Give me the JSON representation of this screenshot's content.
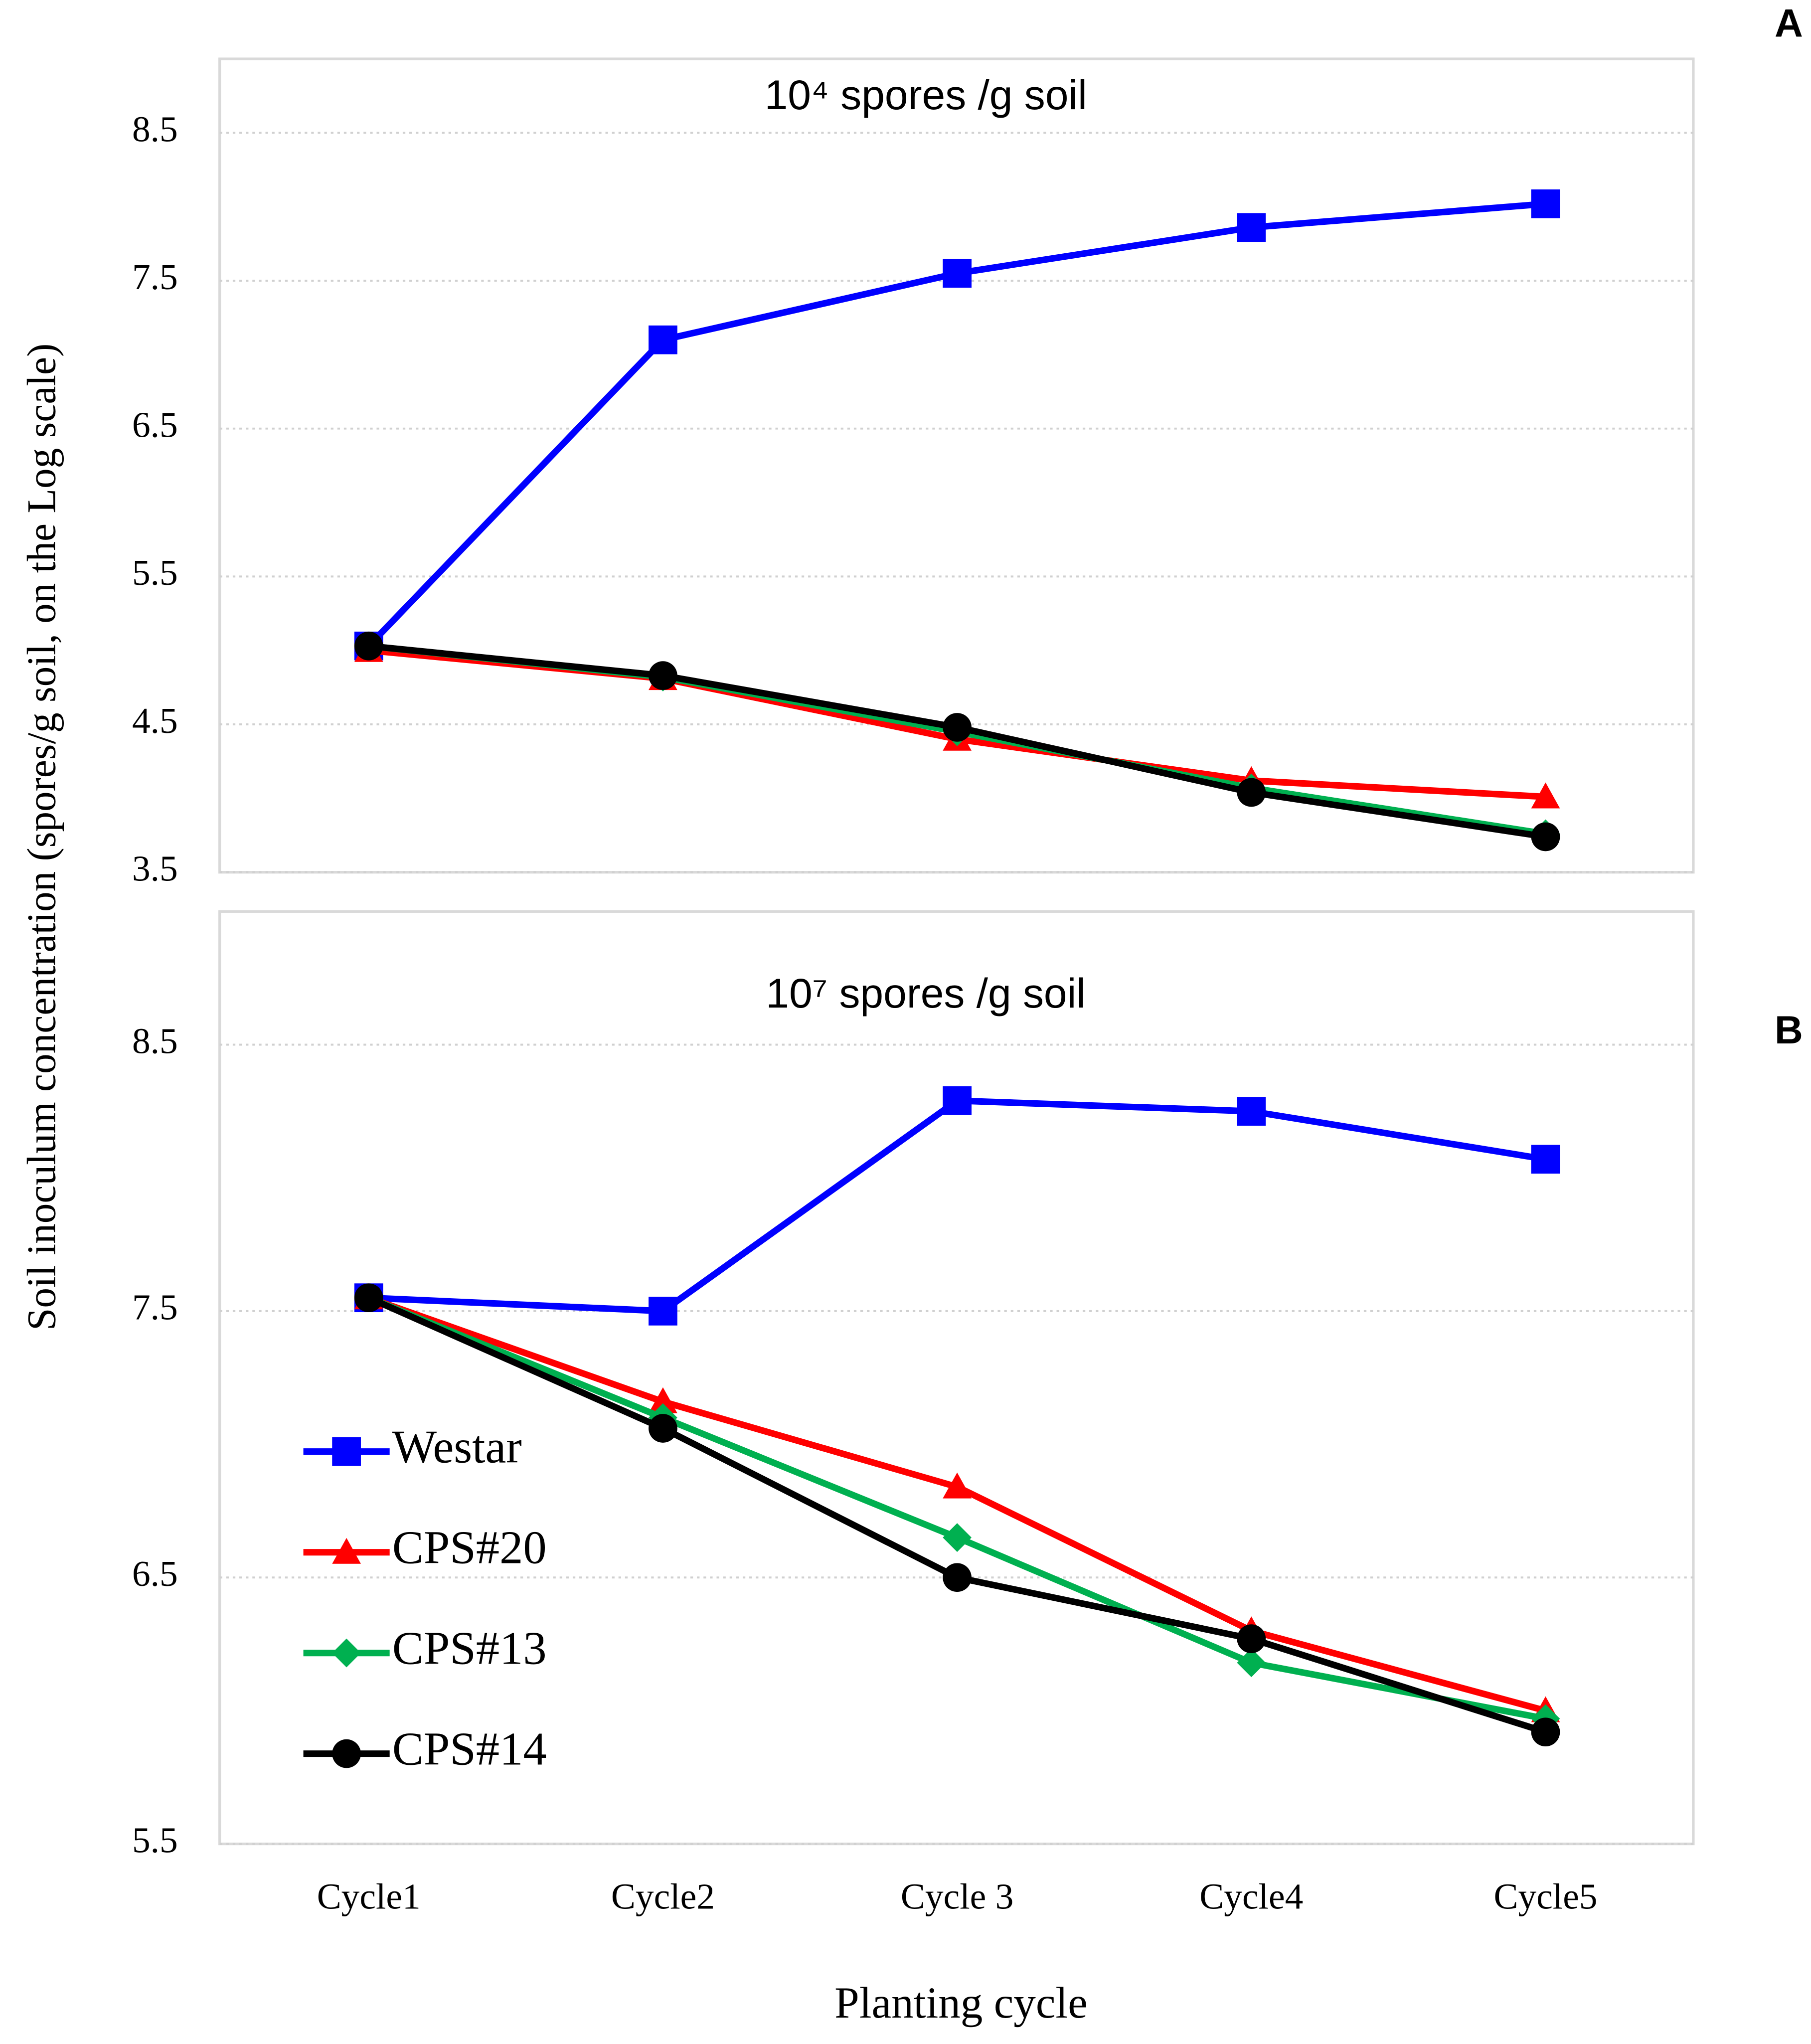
{
  "chart_data": [
    {
      "type": "line",
      "title": "10⁴ spores /g soil",
      "panel_label": "A",
      "y_label": "Soil inoculum concentration (spores/g soil, on the Log scale)",
      "categories": [
        null,
        null,
        null,
        null,
        null
      ],
      "ylim": [
        3.5,
        9.0
      ],
      "yticks": [
        3.5,
        4.5,
        5.5,
        6.5,
        7.5,
        8.5
      ],
      "grid": true,
      "series": [
        {
          "color": "#0000ff",
          "marker": "square",
          "values": [
            5.03,
            7.1,
            7.55,
            7.86,
            8.02
          ]
        },
        {
          "color": "#ff0000",
          "marker": "triangle",
          "values": [
            5.0,
            4.81,
            4.4,
            4.12,
            4.01
          ]
        },
        {
          "color": "#00b050",
          "marker": "diamond",
          "values": [
            5.03,
            4.82,
            4.45,
            4.07,
            3.76
          ]
        },
        {
          "color": "#000000",
          "marker": "circle",
          "values": [
            5.03,
            4.83,
            4.48,
            4.04,
            3.74
          ]
        }
      ]
    },
    {
      "type": "line",
      "title": "10⁷ spores /g soil",
      "panel_label": "B",
      "x_label": "Planting cycle",
      "categories": [
        "Cycle1",
        "Cycle2",
        "Cycle 3",
        "Cycle4",
        "Cycle5"
      ],
      "ylim": [
        5.5,
        9.0
      ],
      "yticks": [
        5.5,
        6.5,
        7.5,
        8.5
      ],
      "grid": true,
      "legend": "lower left",
      "series": [
        {
          "name": "Westar",
          "color": "#0000ff",
          "marker": "square",
          "values": [
            7.55,
            7.5,
            8.29,
            8.25,
            8.07
          ]
        },
        {
          "name": "CPS#20",
          "color": "#ff0000",
          "marker": "triangle",
          "values": [
            7.55,
            7.16,
            6.84,
            6.3,
            6.0
          ]
        },
        {
          "name": "CPS#13",
          "color": "#00b050",
          "marker": "diamond",
          "values": [
            7.55,
            7.1,
            6.65,
            6.18,
            5.97
          ]
        },
        {
          "name": "CPS#14",
          "color": "#000000",
          "marker": "circle",
          "values": [
            7.55,
            7.06,
            6.5,
            6.27,
            5.92
          ]
        }
      ]
    }
  ]
}
